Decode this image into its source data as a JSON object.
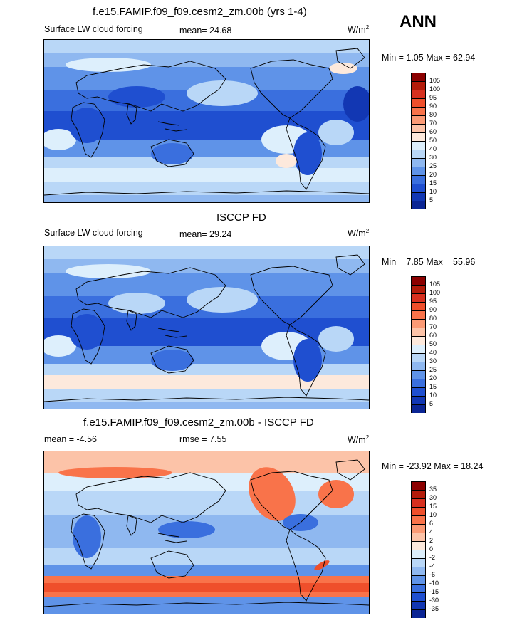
{
  "season": "ANN",
  "units_base": "W/m",
  "units_exp": "2",
  "panels": [
    {
      "title": "f.e15.FAMIP.f09_f09.cesm2_zm.00b (yrs 1-4)",
      "left_label": "Surface LW cloud forcing",
      "stat_label": "mean=  24.68",
      "minmax": "Min =   1.05 Max =  62.94",
      "colorbar": {
        "labels": [
          "105",
          "100",
          "95",
          "90",
          "80",
          "70",
          "60",
          "50",
          "40",
          "30",
          "25",
          "20",
          "15",
          "10",
          "5"
        ],
        "colors": [
          "#8b0000",
          "#b31b0a",
          "#d7301f",
          "#ef4f2b",
          "#f9734a",
          "#fb9a75",
          "#fcc3a8",
          "#fde9dc",
          "#ddeffc",
          "#b9d7f7",
          "#8fb8f0",
          "#5f93e8",
          "#3a6fde",
          "#1f4fd0",
          "#1237b3",
          "#0b2594"
        ]
      }
    },
    {
      "title": "ISCCP FD",
      "left_label": "Surface LW cloud forcing",
      "stat_label": "mean=  29.24",
      "minmax": "Min =   7.85 Max =  55.96",
      "colorbar": {
        "labels": [
          "105",
          "100",
          "95",
          "90",
          "80",
          "70",
          "60",
          "50",
          "40",
          "30",
          "25",
          "20",
          "15",
          "10",
          "5"
        ],
        "colors": [
          "#8b0000",
          "#b31b0a",
          "#d7301f",
          "#ef4f2b",
          "#f9734a",
          "#fb9a75",
          "#fcc3a8",
          "#fde9dc",
          "#ddeffc",
          "#b9d7f7",
          "#8fb8f0",
          "#5f93e8",
          "#3a6fde",
          "#1f4fd0",
          "#1237b3",
          "#0b2594"
        ]
      }
    },
    {
      "title": "f.e15.FAMIP.f09_f09.cesm2_zm.00b - ISCCP FD",
      "left_label": "mean =  -4.56",
      "stat_label": "rmse =   7.55",
      "minmax": "Min = -23.92 Max =  18.24",
      "colorbar": {
        "labels": [
          "35",
          "30",
          "15",
          "10",
          "6",
          "4",
          "2",
          "0",
          "-2",
          "-4",
          "-6",
          "-10",
          "-15",
          "-30",
          "-35"
        ],
        "colors": [
          "#8b0000",
          "#b31b0a",
          "#d7301f",
          "#ef4f2b",
          "#f9734a",
          "#fb9a75",
          "#fcc3a8",
          "#fde9dc",
          "#ddeffc",
          "#b9d7f7",
          "#8fb8f0",
          "#5f93e8",
          "#3a6fde",
          "#1f4fd0",
          "#1237b3",
          "#0b2594"
        ]
      }
    }
  ]
}
